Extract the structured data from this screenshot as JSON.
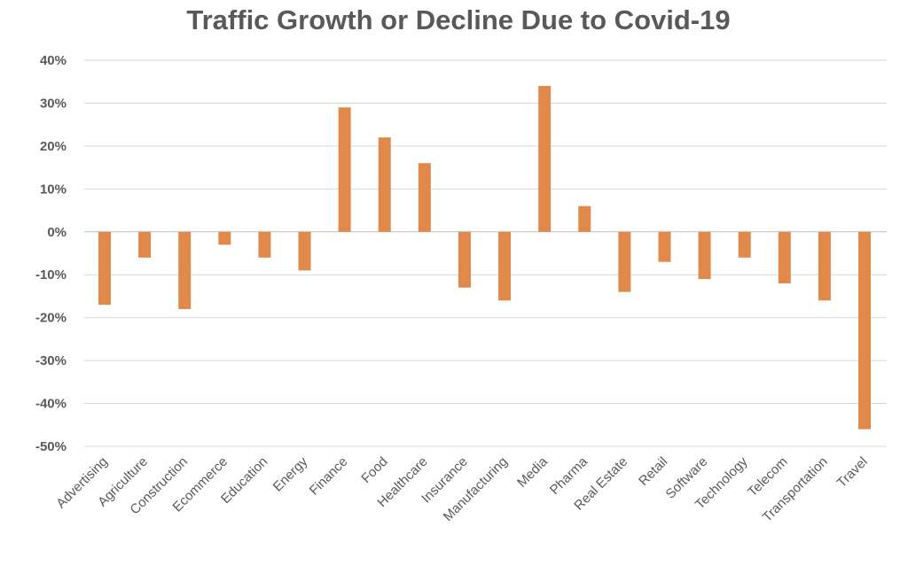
{
  "chart_data": {
    "type": "bar",
    "title": "Traffic Growth or Decline Due to Covid-19",
    "xlabel": "",
    "ylabel": "",
    "ylim": [
      -50,
      40
    ],
    "yticks": [
      40,
      30,
      20,
      10,
      0,
      -10,
      -20,
      -30,
      -40,
      -50
    ],
    "ytick_labels": [
      "40%",
      "30%",
      "20%",
      "10%",
      "0%",
      "-10%",
      "-20%",
      "-30%",
      "-40%",
      "-50%"
    ],
    "grid": true,
    "bar_color": "#E0894A",
    "categories": [
      "Advertising",
      "Agriculture",
      "Construction",
      "Ecommerce",
      "Education",
      "Energy",
      "Finance",
      "Food",
      "Healthcare",
      "Insurance",
      "Manufacturing",
      "Media",
      "Pharma",
      "Real Estate",
      "Retail",
      "Software",
      "Technology",
      "Telecom",
      "Transportation",
      "Travel"
    ],
    "values": [
      -17,
      -6,
      -18,
      -3,
      -6,
      -9,
      29,
      22,
      16,
      -13,
      -16,
      34,
      6,
      -14,
      -7,
      -11,
      -6,
      -12,
      -16,
      -46
    ]
  }
}
